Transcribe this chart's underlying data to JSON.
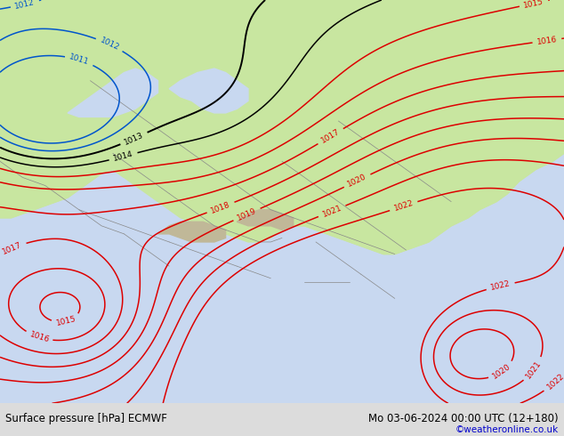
{
  "title_left": "Surface pressure [hPa] ECMWF",
  "title_right": "Mo 03-06-2024 00:00 UTC (12+180)",
  "credit": "©weatheronline.co.uk",
  "bg_color": "#dcdcdc",
  "map_land_color": "#c8e6a0",
  "map_sea_color": "#c8d8f0",
  "mountain_color": "#c0b898",
  "fig_width": 6.34,
  "fig_height": 4.9,
  "dpi": 100,
  "bottom_bar_color": "#dcdcdc",
  "title_fontsize": 8.5,
  "credit_color": "#0000cc",
  "isobar_red_color": "#dd0000",
  "isobar_black_color": "#000000",
  "isobar_blue_color": "#0055cc",
  "label_fontsize": 6.5,
  "border_color": "#888888"
}
